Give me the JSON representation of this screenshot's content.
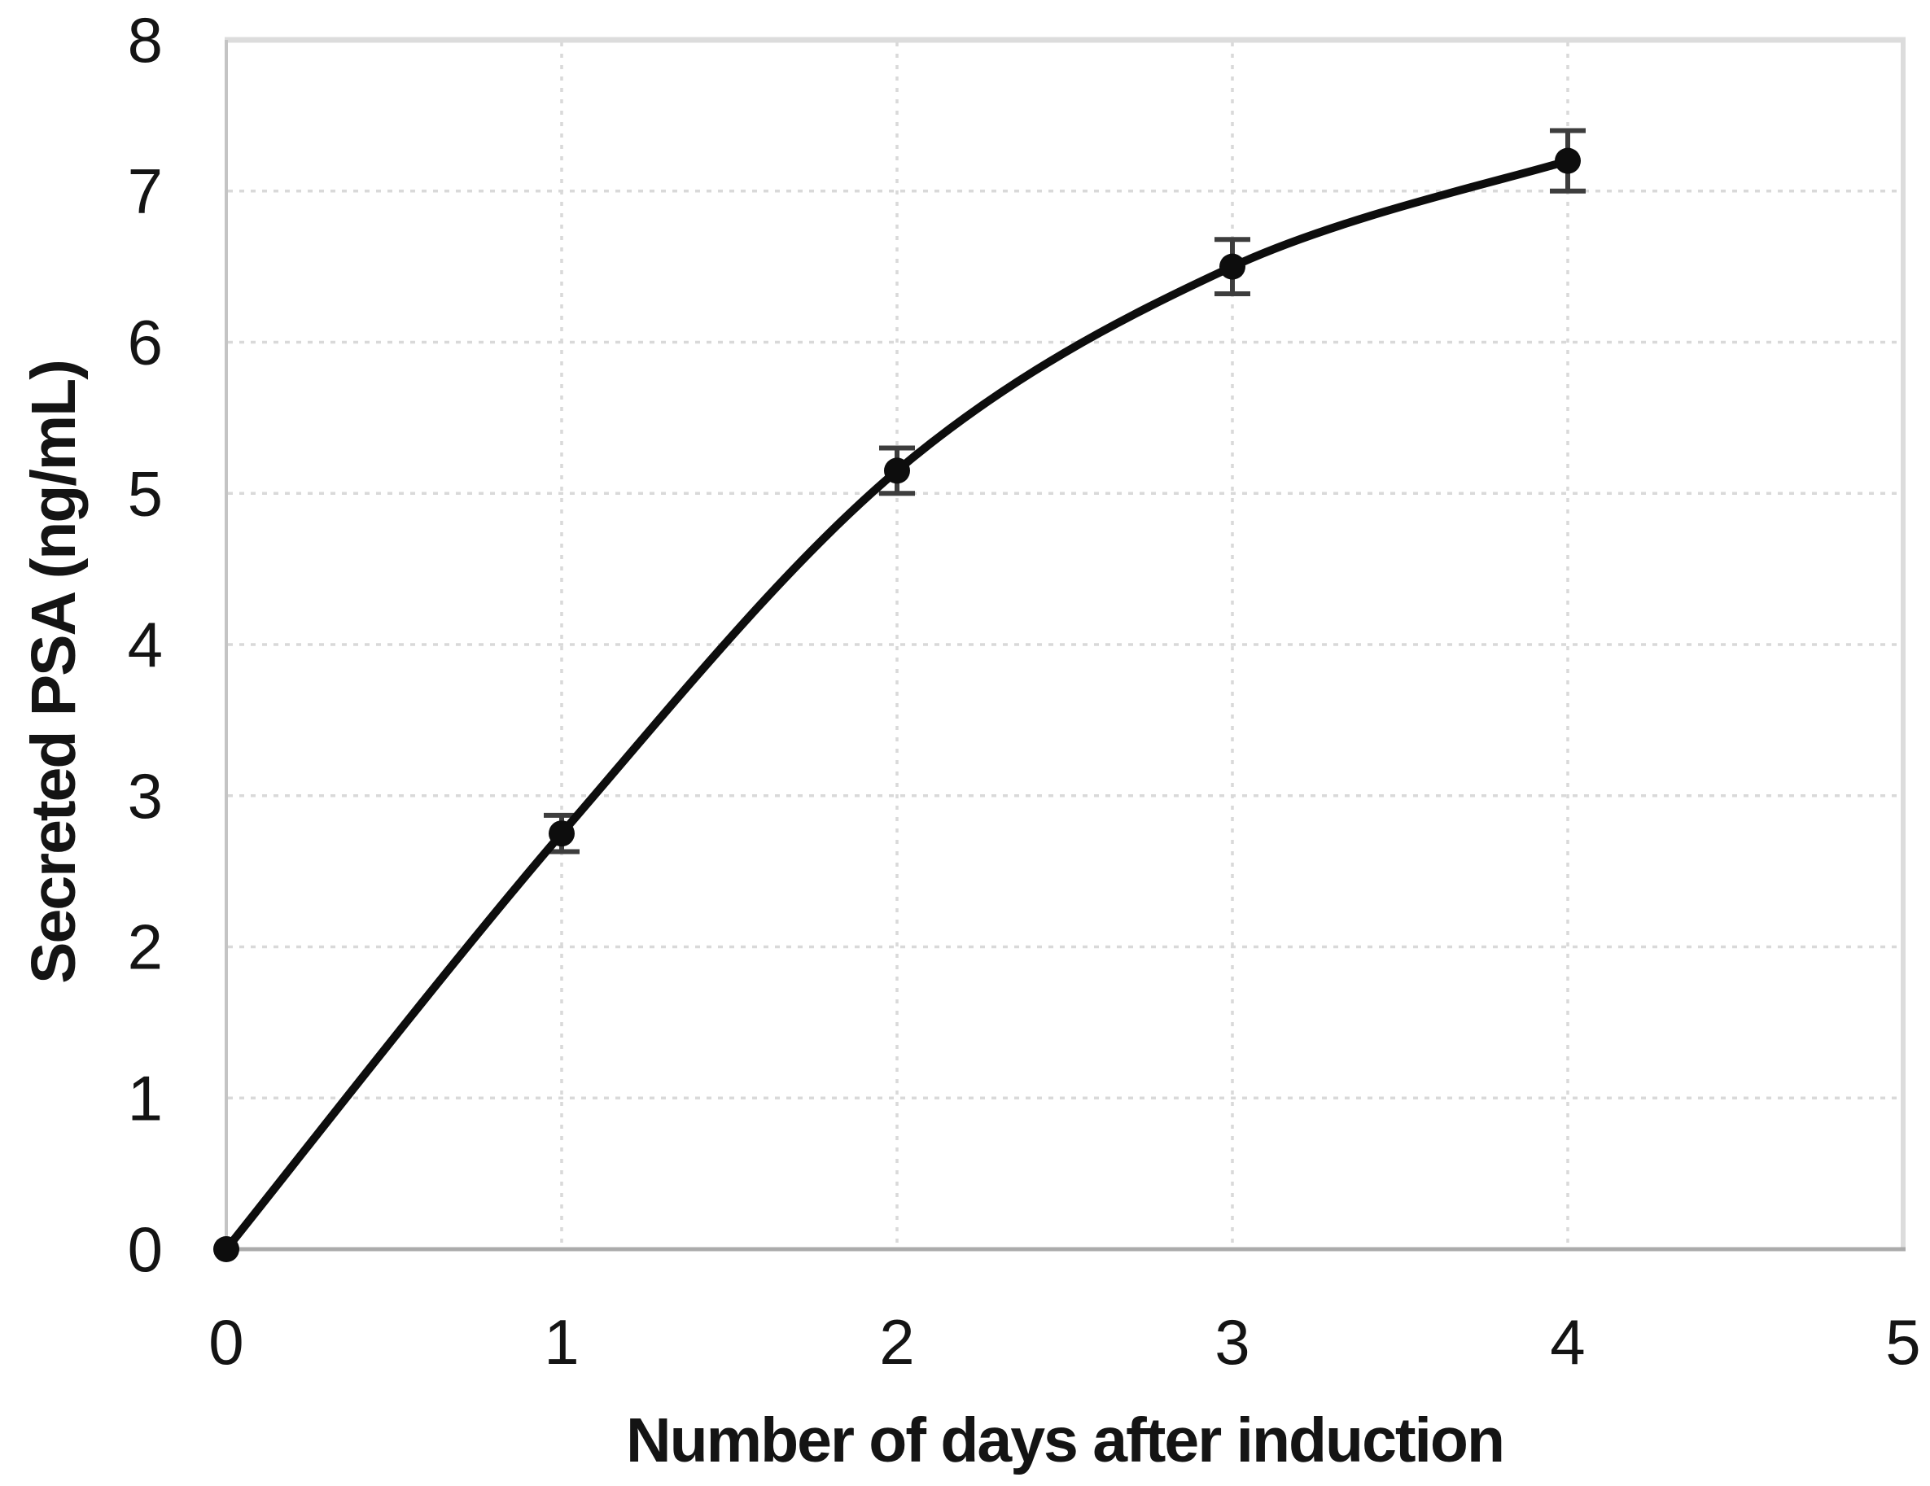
{
  "chart_data": {
    "type": "line",
    "title": "",
    "xlabel": "Number of days after induction",
    "ylabel": "Secreted PSA (ng/mL)",
    "x": [
      0,
      1,
      2,
      3,
      4
    ],
    "series": [
      {
        "name": "Secreted PSA",
        "values": [
          0,
          2.75,
          5.15,
          6.5,
          7.2
        ],
        "errors": [
          0,
          0.12,
          0.15,
          0.18,
          0.2
        ]
      }
    ],
    "xlim": [
      0,
      5
    ],
    "ylim": [
      0,
      8
    ],
    "xticks": [
      "0",
      "1",
      "2",
      "3",
      "4",
      "5"
    ],
    "yticks": [
      "0",
      "1",
      "2",
      "3",
      "4",
      "5",
      "6",
      "7",
      "8"
    ],
    "grid": true,
    "legend": false,
    "style": {
      "line_color": "#0d0d0d",
      "marker_color": "#0d0d0d",
      "errorbar_color": "#3d3d3d",
      "gridline_color": "#d9d9d9",
      "border_color": "#dcdcdc",
      "left_border_color": "#c4c4c4",
      "axis_color": "#ababab",
      "text_color": "#141414",
      "background": "#ffffff"
    }
  }
}
